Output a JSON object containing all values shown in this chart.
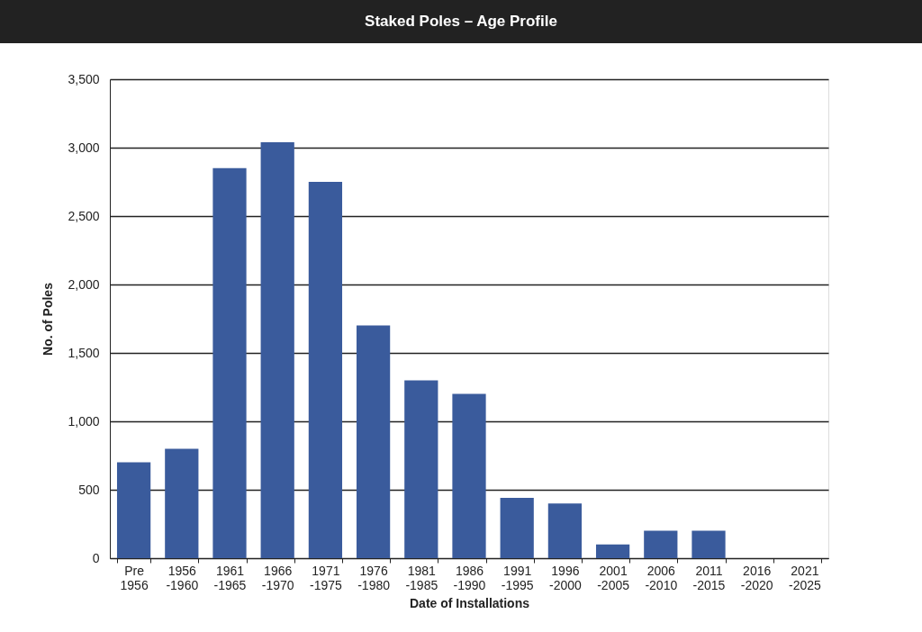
{
  "chart_data": {
    "type": "bar",
    "title": "Staked Poles – Age Profile",
    "xlabel": "Date of Installations",
    "ylabel": "No. of Poles",
    "categories": [
      "Pre 1956",
      "1956 -1960",
      "1961 -1965",
      "1966 -1970",
      "1971 -1975",
      "1976 -1980",
      "1981 -1985",
      "1986 -1990",
      "1991 -1995",
      "1996 -2000",
      "2001 -2005",
      "2006 -2010",
      "2011 -2015",
      "2016 -2020",
      "2021 -2025"
    ],
    "values": [
      700,
      800,
      2850,
      3040,
      2750,
      1700,
      1300,
      1200,
      440,
      400,
      100,
      200,
      200,
      0,
      0
    ],
    "color": "#3a5b9c",
    "ylim": [
      0,
      3500
    ],
    "yticks": [
      0,
      500,
      {
        "value": 1000,
        "label": "1,000"
      },
      {
        "value": 1500,
        "label": "1,500"
      },
      {
        "value": 2000,
        "label": "2,000"
      },
      {
        "value": 2500,
        "label": "2,500"
      },
      {
        "value": 3000,
        "label": "3,000"
      },
      {
        "value": 3500,
        "label": "3,500"
      }
    ],
    "grid": "y"
  }
}
